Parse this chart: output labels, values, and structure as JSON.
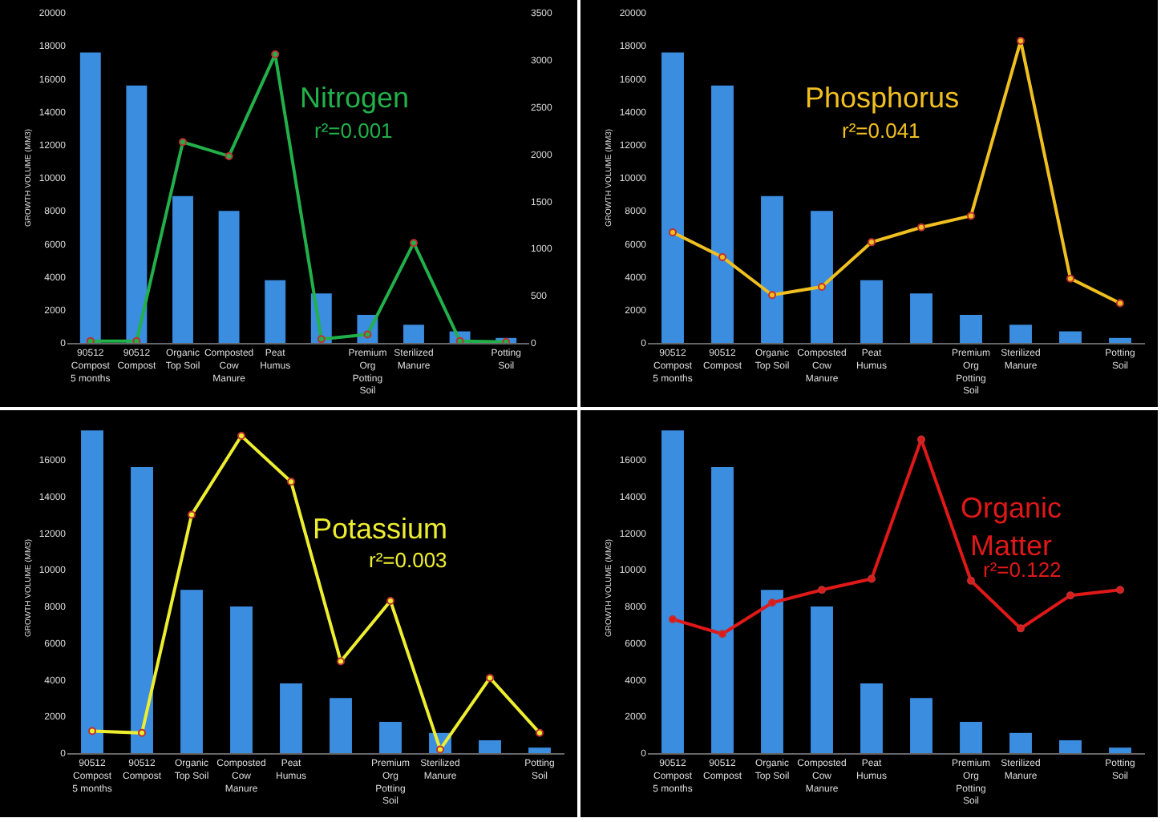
{
  "chart_data": [
    {
      "type": "bar",
      "ylabel": "GROWTH VOLUME (MM3)",
      "categories": [
        "90512 Compost 5 months",
        "90512 Compost",
        "Organic Top Soil",
        "Composted Cow Manure",
        "Peat Humus",
        null,
        "Premium Org Potting Soil",
        "Sterilized Manure",
        null,
        "Potting Soil"
      ],
      "ylim": [
        0,
        20000
      ],
      "yticks": [
        0,
        2000,
        4000,
        6000,
        8000,
        10000,
        12000,
        14000,
        16000,
        18000,
        20000
      ],
      "y2lim": [
        0,
        3500
      ],
      "y2ticks": [
        0,
        500,
        1000,
        1500,
        2000,
        2500,
        3000,
        3500
      ],
      "marker": "circle",
      "annotations": [
        "r²=0.001"
      ],
      "series": [
        {
          "type": "bar",
          "color": "#3b8de0",
          "values": [
            17600,
            15600,
            8900,
            8000,
            3800,
            3000,
            1700,
            1100,
            700,
            300
          ]
        },
        {
          "type": "line",
          "name": "Nitrogen",
          "axis": "y2",
          "color": "#22b04a",
          "values": [
            20,
            20,
            2130,
            1980,
            3060,
            40,
            90,
            1060,
            20,
            10
          ]
        }
      ]
    },
    {
      "type": "bar",
      "ylabel": "GROWTH VOLUME (MM3)",
      "categories": [
        "90512 Compost 5 months",
        "90512 Compost",
        "Organic Top Soil",
        "Composted Cow Manure",
        "Peat Humus",
        null,
        "Premium Org Potting Soil",
        "Sterilized Manure",
        null,
        "Potting Soil"
      ],
      "ylim": [
        0,
        20000
      ],
      "yticks": [
        0,
        2000,
        4000,
        6000,
        8000,
        10000,
        12000,
        14000,
        16000,
        18000,
        20000
      ],
      "marker": "circle",
      "annotations": [
        "r²=0.041"
      ],
      "series": [
        {
          "type": "bar",
          "color": "#3b8de0",
          "values": [
            17600,
            15600,
            8900,
            8000,
            3800,
            3000,
            1700,
            1100,
            700,
            300
          ]
        },
        {
          "type": "line",
          "name": "Phosphorus",
          "color": "#f0c020",
          "values": [
            6700,
            5200,
            2900,
            3400,
            6100,
            7000,
            7700,
            18300,
            3900,
            2400
          ]
        }
      ]
    },
    {
      "type": "bar",
      "ylabel": "GROWTH VOLUME (MM3)",
      "categories": [
        "90512 Compost 5 months",
        "90512 Compost",
        "Organic Top Soil",
        "Composted Cow Manure",
        "Peat Humus",
        null,
        "Premium Org Potting Soil",
        "Sterilized Manure",
        null,
        "Potting Soil"
      ],
      "ylim": [
        0,
        18000
      ],
      "yticks": [
        0,
        2000,
        4000,
        6000,
        8000,
        10000,
        12000,
        14000,
        16000
      ],
      "marker": "circle",
      "annotations": [
        "r²=0.003"
      ],
      "series": [
        {
          "type": "bar",
          "color": "#3b8de0",
          "values": [
            17600,
            15600,
            8900,
            8000,
            3800,
            3000,
            1700,
            1100,
            700,
            300
          ]
        },
        {
          "type": "line",
          "name": "Potassium",
          "color": "#eeee30",
          "values": [
            1200,
            1100,
            13000,
            17300,
            14800,
            5000,
            8300,
            200,
            4100,
            1100
          ]
        }
      ]
    },
    {
      "type": "bar",
      "ylabel": "GROWTH VOLUME (MM3)",
      "categories": [
        "90512 Compost 5 months",
        "90512 Compost",
        "Organic Top Soil",
        "Composted Cow Manure",
        "Peat Humus",
        null,
        "Premium Org Potting Soil",
        "Sterilized Manure",
        null,
        "Potting Soil"
      ],
      "ylim": [
        0,
        18000
      ],
      "yticks": [
        0,
        2000,
        4000,
        6000,
        8000,
        10000,
        12000,
        14000,
        16000
      ],
      "marker": "circle",
      "annotations": [
        "r²=0.122"
      ],
      "series": [
        {
          "type": "bar",
          "color": "#3b8de0",
          "values": [
            17600,
            15600,
            8900,
            8000,
            3800,
            3000,
            1700,
            1100,
            700,
            300
          ]
        },
        {
          "type": "line",
          "name": "Organic Matter",
          "color": "#e01818",
          "values": [
            7300,
            6500,
            8200,
            8900,
            9500,
            17100,
            9400,
            6800,
            8600,
            8900
          ]
        }
      ]
    }
  ]
}
